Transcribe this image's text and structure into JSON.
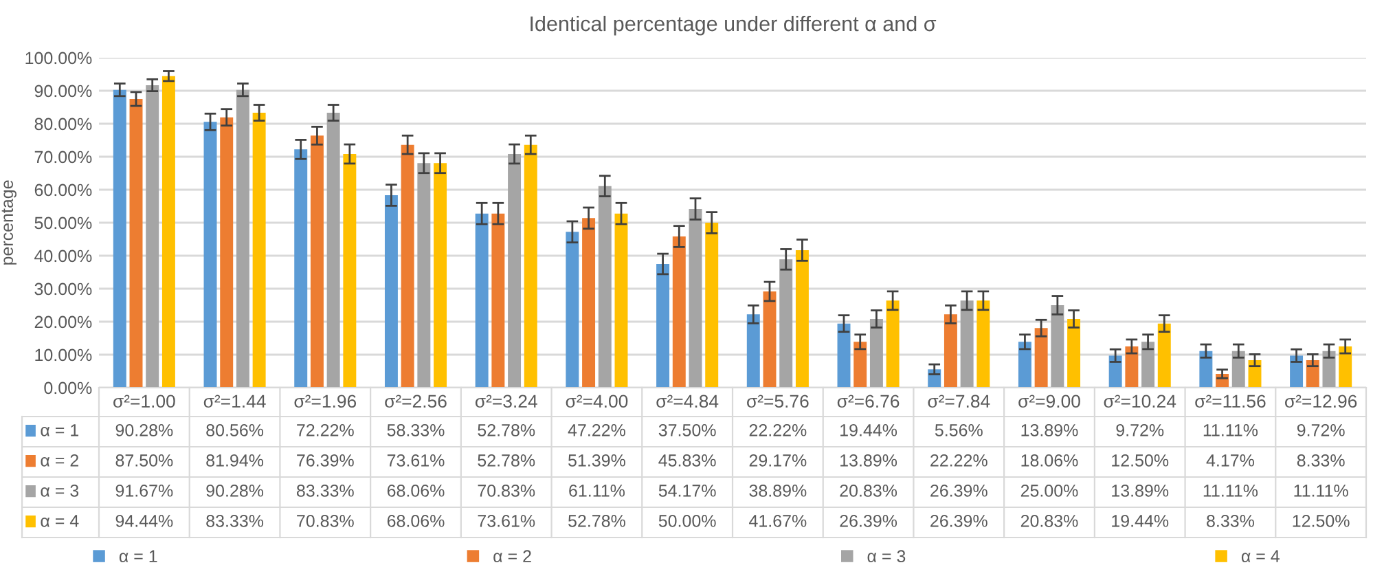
{
  "chart_data": {
    "type": "bar",
    "title": "Identical percentage under different α and σ",
    "ylabel": "percentage",
    "categories": [
      "σ²=1.00",
      "σ²=1.44",
      "σ²=1.96",
      "σ²=2.56",
      "σ²=3.24",
      "σ²=4.00",
      "σ²=4.84",
      "σ²=5.76",
      "σ²=6.76",
      "σ²=7.84",
      "σ²=9.00",
      "σ²=10.24",
      "σ²=11.56",
      "σ²=12.96"
    ],
    "series": [
      {
        "name": "α = 1",
        "color": "#5b9bd5",
        "values": [
          90.28,
          80.56,
          72.22,
          58.33,
          52.78,
          47.22,
          37.5,
          22.22,
          19.44,
          5.56,
          13.89,
          9.72,
          11.11,
          9.72
        ],
        "value_labels": [
          "90.28%",
          "80.56%",
          "72.22%",
          "58.33%",
          "52.78%",
          "47.22%",
          "37.50%",
          "22.22%",
          "19.44%",
          "5.56%",
          "13.89%",
          "9.72%",
          "11.11%",
          "9.72%"
        ],
        "errors": [
          1.9,
          2.5,
          2.9,
          3.2,
          3.2,
          3.2,
          3.1,
          2.7,
          2.5,
          1.5,
          2.2,
          1.9,
          2.0,
          1.9
        ]
      },
      {
        "name": "α = 2",
        "color": "#ed7d31",
        "values": [
          87.5,
          81.94,
          76.39,
          73.61,
          52.78,
          51.39,
          45.83,
          29.17,
          13.89,
          22.22,
          18.06,
          12.5,
          4.17,
          8.33
        ],
        "value_labels": [
          "87.50%",
          "81.94%",
          "76.39%",
          "73.61%",
          "52.78%",
          "51.39%",
          "45.83%",
          "29.17%",
          "13.89%",
          "22.22%",
          "18.06%",
          "12.50%",
          "4.17%",
          "8.33%"
        ],
        "errors": [
          2.1,
          2.5,
          2.7,
          2.8,
          3.2,
          3.2,
          3.2,
          2.9,
          2.2,
          2.7,
          2.5,
          2.1,
          1.3,
          1.8
        ]
      },
      {
        "name": "α = 3",
        "color": "#a5a5a5",
        "values": [
          91.67,
          90.28,
          83.33,
          68.06,
          70.83,
          61.11,
          54.17,
          38.89,
          20.83,
          26.39,
          25.0,
          13.89,
          11.11,
          11.11
        ],
        "value_labels": [
          "91.67%",
          "90.28%",
          "83.33%",
          "68.06%",
          "70.83%",
          "61.11%",
          "54.17%",
          "38.89%",
          "20.83%",
          "26.39%",
          "25.00%",
          "13.89%",
          "11.11%",
          "11.11%"
        ],
        "errors": [
          1.8,
          1.9,
          2.4,
          3.0,
          2.9,
          3.1,
          3.2,
          3.1,
          2.6,
          2.8,
          2.8,
          2.2,
          2.0,
          2.0
        ]
      },
      {
        "name": "α = 4",
        "color": "#ffc000",
        "values": [
          94.44,
          83.33,
          70.83,
          68.06,
          73.61,
          52.78,
          50.0,
          41.67,
          26.39,
          26.39,
          20.83,
          19.44,
          8.33,
          12.5
        ],
        "value_labels": [
          "94.44%",
          "83.33%",
          "70.83%",
          "68.06%",
          "73.61%",
          "52.78%",
          "50.00%",
          "41.67%",
          "26.39%",
          "26.39%",
          "20.83%",
          "19.44%",
          "8.33%",
          "12.50%"
        ],
        "errors": [
          1.5,
          2.4,
          2.9,
          3.0,
          2.8,
          3.2,
          3.2,
          3.2,
          2.8,
          2.8,
          2.6,
          2.5,
          1.8,
          2.1
        ]
      }
    ],
    "ylim": [
      0,
      100
    ],
    "yticks": [
      {
        "value": 0,
        "label": "0.00%"
      },
      {
        "value": 10,
        "label": "10.00%"
      },
      {
        "value": 20,
        "label": "20.00%"
      },
      {
        "value": 30,
        "label": "30.00%"
      },
      {
        "value": 40,
        "label": "40.00%"
      },
      {
        "value": 50,
        "label": "50.00%"
      },
      {
        "value": 60,
        "label": "60.00%"
      },
      {
        "value": 70,
        "label": "70.00%"
      },
      {
        "value": 80,
        "label": "80.00%"
      },
      {
        "value": 90,
        "label": "90.00%"
      },
      {
        "value": 100,
        "label": "100.00%"
      }
    ],
    "grid": "y",
    "legend": "bottom"
  }
}
